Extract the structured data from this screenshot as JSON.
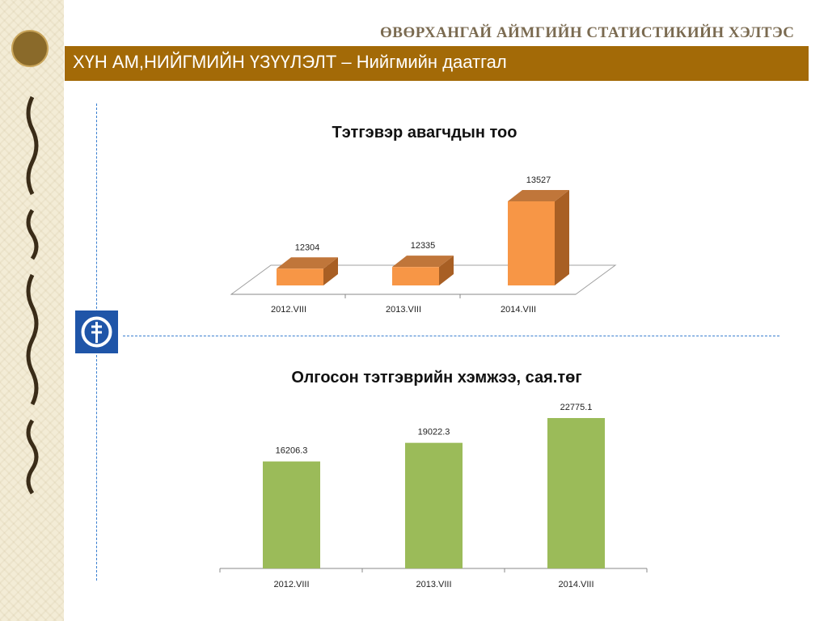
{
  "org_title": "ӨВӨРХАНГАЙ АЙМГИЙН СТАТИСТИКИЙН ХЭЛТЭС",
  "page_title": "ХҮН АМ,НИЙГМИЙН ҮЗҮҮЛЭЛТ – Нийгмийн даатгал",
  "colors": {
    "header": "#a36a07",
    "bar1_front": "#f79646",
    "bar1_top": "#c0763a",
    "bar1_side": "#a85f24",
    "bar2": "#9bbb59",
    "divider": "#3a7fd0"
  },
  "chart_data": [
    {
      "type": "bar",
      "title": "Тэтгэвэр авагчдын тоо",
      "categories": [
        "2012.VIII",
        "2013.VIII",
        "2014.VIII"
      ],
      "values": [
        12304,
        12335,
        13527
      ],
      "data_labels": [
        "12304",
        "12335",
        "13527"
      ],
      "three_d": true,
      "grid": false,
      "legend": "none"
    },
    {
      "type": "bar",
      "title": "Олгосон тэтгэврийн хэмжээ, сая.төг",
      "categories": [
        "2012.VIII",
        "2013.VIII",
        "2014.VIII"
      ],
      "values": [
        16206.3,
        19022.3,
        22775.1
      ],
      "data_labels": [
        "16206.3",
        "19022.3",
        "22775.1"
      ],
      "three_d": false,
      "grid": false,
      "legend": "none"
    }
  ]
}
